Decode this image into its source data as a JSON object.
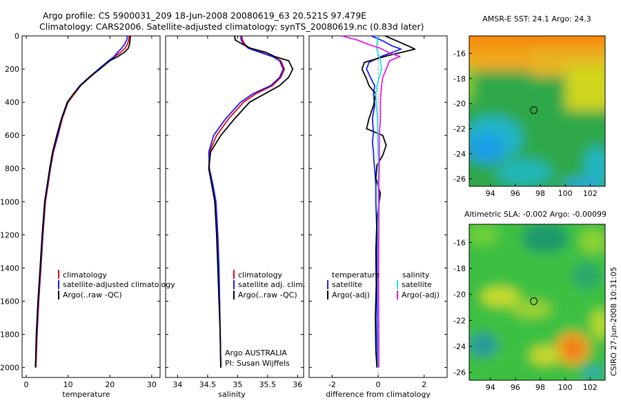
{
  "header": {
    "line1": "Argo profile: CS 5900031_209 18-Jun-2008 20080619_63 20.521S 97.479E",
    "line2": "Climatology: CARS2006. Satellite-adjusted climatology: synTS_20080619.nc (0.83d later)"
  },
  "side_label": "CSIRO 27-Jun-2008 10:31:05",
  "colors": {
    "climatology": "#e8000b",
    "satellite": "#1a1aff",
    "argo": "#000000",
    "satellite_sal": "#22e0e6",
    "argo_sal": "#e61ae6"
  },
  "chart_data": [
    {
      "type": "line",
      "xlabel": "temperature",
      "xlim": [
        -1,
        32
      ],
      "ylim": [
        2060,
        0
      ],
      "xticks": [
        0,
        10,
        20,
        30
      ],
      "yticks": [
        0,
        200,
        400,
        600,
        800,
        1000,
        1200,
        1400,
        1600,
        1800,
        2000
      ],
      "legend": [
        "climatology",
        "satellite-adjusted climatology",
        "Argo(..raw -QC)"
      ],
      "series": [
        {
          "name": "climatology",
          "color": "#e8000b",
          "x": [
            24.6,
            24.5,
            24.2,
            23.6,
            22.5,
            21.2,
            19.8,
            17.5,
            15.2,
            13.0,
            11.5,
            10.0,
            8.6,
            7.6,
            6.5,
            5.8,
            5.2,
            4.6,
            4.0,
            3.5,
            3.0,
            2.6,
            2.3
          ],
          "y": [
            0,
            25,
            50,
            75,
            100,
            125,
            150,
            200,
            250,
            300,
            350,
            400,
            500,
            600,
            700,
            800,
            900,
            1000,
            1200,
            1400,
            1600,
            1800,
            2000
          ]
        },
        {
          "name": "satellite-adjusted climatology",
          "color": "#1a1aff",
          "x": [
            24.2,
            24.0,
            23.5,
            22.8,
            21.8,
            21.0,
            19.7,
            17.3,
            15.0,
            12.8,
            11.3,
            9.9,
            8.5,
            7.5,
            6.4,
            5.7,
            5.1,
            4.5,
            3.9,
            3.4,
            2.9,
            2.5,
            2.2
          ],
          "y": [
            0,
            25,
            50,
            75,
            100,
            125,
            150,
            200,
            250,
            300,
            350,
            400,
            500,
            600,
            700,
            800,
            900,
            1000,
            1200,
            1400,
            1600,
            1800,
            2000
          ]
        },
        {
          "name": "Argo(..raw -QC)",
          "color": "#000000",
          "x": [
            24.9,
            24.8,
            24.7,
            24.4,
            23.4,
            21.9,
            20.0,
            17.6,
            15.1,
            13.0,
            11.3,
            9.8,
            8.4,
            7.3,
            6.3,
            5.6,
            5.0,
            4.4,
            3.8,
            3.3,
            2.8,
            2.4,
            2.2
          ],
          "y": [
            0,
            25,
            50,
            75,
            100,
            125,
            150,
            200,
            250,
            300,
            350,
            400,
            500,
            600,
            700,
            800,
            900,
            1000,
            1200,
            1400,
            1600,
            1800,
            2000
          ]
        }
      ]
    },
    {
      "type": "line",
      "xlabel": "salinity",
      "xlim": [
        33.8,
        36.1
      ],
      "ylim": [
        2060,
        0
      ],
      "xticks": [
        34,
        34.5,
        35,
        35.5,
        36
      ],
      "legend": [
        "climatology",
        "satellite adj. clim.",
        "Argo(..raw -QC)"
      ],
      "annotation": [
        "Argo AUSTRALIA",
        "PI: Susan Wijffels"
      ],
      "series": [
        {
          "name": "climatology",
          "color": "#e8000b",
          "x": [
            35.07,
            35.08,
            35.12,
            35.2,
            35.4,
            35.6,
            35.72,
            35.78,
            35.72,
            35.58,
            35.3,
            35.1,
            34.85,
            34.65,
            34.53,
            34.52,
            34.58,
            34.63,
            34.66,
            34.68,
            34.7,
            34.71,
            34.72
          ],
          "y": [
            0,
            25,
            50,
            75,
            100,
            125,
            150,
            200,
            250,
            300,
            350,
            400,
            500,
            600,
            700,
            800,
            900,
            1000,
            1200,
            1400,
            1600,
            1800,
            2000
          ]
        },
        {
          "name": "satellite adj. clim.",
          "color": "#1a1aff",
          "x": [
            35.05,
            35.06,
            35.1,
            35.18,
            35.38,
            35.58,
            35.7,
            35.76,
            35.7,
            35.55,
            35.25,
            35.05,
            34.8,
            34.6,
            34.52,
            34.53,
            34.59,
            34.64,
            34.67,
            34.69,
            34.7,
            34.71,
            34.72
          ],
          "y": [
            0,
            25,
            50,
            75,
            100,
            125,
            150,
            200,
            250,
            300,
            350,
            400,
            500,
            600,
            700,
            800,
            900,
            1000,
            1200,
            1400,
            1600,
            1800,
            2000
          ]
        },
        {
          "name": "Argo(..raw -QC)",
          "color": "#000000",
          "x": [
            34.95,
            34.96,
            35.08,
            35.22,
            35.48,
            35.62,
            35.85,
            35.92,
            35.85,
            35.7,
            35.45,
            35.2,
            34.95,
            34.72,
            34.55,
            34.52,
            34.57,
            34.62,
            34.65,
            34.67,
            34.69,
            34.71,
            34.72
          ],
          "y": [
            0,
            25,
            50,
            75,
            100,
            125,
            150,
            200,
            250,
            300,
            350,
            400,
            500,
            600,
            700,
            800,
            900,
            1000,
            1200,
            1400,
            1600,
            1800,
            2000
          ]
        }
      ]
    },
    {
      "type": "line",
      "xlabel": "difference from climatology",
      "xlim": [
        -3,
        3
      ],
      "ylim": [
        2060,
        0
      ],
      "xticks": [
        -2,
        0,
        2
      ],
      "legend_left_title": "temperature",
      "legend_right_title": "salinity",
      "legend": [
        "satellite",
        "Argo(-adj)",
        "satellite",
        "Argo(-adj)"
      ],
      "series": [
        {
          "name": "temperature satellite",
          "color": "#1a1aff",
          "x": [
            -0.3,
            0.2,
            0.6,
            1.0,
            0.2,
            -0.4,
            -0.5,
            -0.3,
            -0.15,
            -0.2,
            -0.15,
            -0.25,
            -0.2,
            -0.25,
            -0.2,
            -0.18,
            -0.15,
            -0.1,
            -0.1,
            -0.05,
            -0.05,
            -0.05,
            -0.05,
            -0.03,
            -0.03
          ],
          "y": [
            0,
            30,
            60,
            80,
            120,
            160,
            200,
            260,
            300,
            350,
            420,
            500,
            580,
            640,
            700,
            760,
            800,
            900,
            1000,
            1200,
            1400,
            1600,
            1800,
            1950,
            2000
          ]
        },
        {
          "name": "temperature Argo(-adj)",
          "color": "#000000",
          "x": [
            0.3,
            0.8,
            1.3,
            1.6,
            0.4,
            -0.6,
            -0.7,
            -0.5,
            -0.4,
            -0.1,
            -0.2,
            -0.4,
            -0.5,
            0.2,
            0.35,
            0.2,
            -0.05,
            -0.1,
            0.1,
            -0.05,
            -0.1,
            -0.08,
            -0.12,
            -0.1,
            -0.05
          ],
          "y": [
            0,
            30,
            60,
            80,
            120,
            160,
            200,
            260,
            300,
            350,
            420,
            500,
            560,
            600,
            660,
            720,
            780,
            860,
            950,
            1100,
            1300,
            1500,
            1700,
            1900,
            2000
          ]
        },
        {
          "name": "salinity satellite",
          "color": "#22e0e6",
          "x": [
            -0.02,
            -0.03,
            -0.05,
            -0.06,
            -0.02,
            0.05,
            0.1,
            0.15,
            0.05,
            -0.05,
            -0.1,
            -0.08,
            -0.03,
            -0.02,
            0.0,
            0.02,
            0.0,
            0.01,
            0.0,
            0.01,
            0.0,
            0.0,
            0.0
          ],
          "y": [
            0,
            25,
            50,
            75,
            100,
            125,
            150,
            200,
            250,
            300,
            350,
            400,
            500,
            600,
            700,
            800,
            900,
            1000,
            1200,
            1400,
            1600,
            1800,
            2000
          ]
        },
        {
          "name": "salinity Argo(-adj)",
          "color": "#e61ae6",
          "x": [
            -1.6,
            -0.9,
            -0.45,
            0.1,
            0.45,
            0.95,
            0.5,
            0.35,
            0.2,
            0.15,
            0.12,
            0.1,
            0.1,
            0.05,
            0.05,
            0.05,
            0.03,
            0.04,
            0.03,
            0.02,
            0.02,
            0.03,
            0.03
          ],
          "y": [
            0,
            25,
            50,
            75,
            100,
            125,
            150,
            200,
            250,
            300,
            350,
            400,
            500,
            600,
            700,
            800,
            900,
            1000,
            1200,
            1400,
            1600,
            1800,
            2000
          ]
        }
      ]
    },
    {
      "type": "heatmap",
      "title": "AMSR-E SST: 24.1 Argo: 24.3",
      "xticks": [
        94,
        96,
        98,
        100,
        102
      ],
      "yticks": [
        -16,
        -18,
        -20,
        -22,
        -24,
        -26
      ],
      "xlim": [
        92.3,
        103.2
      ],
      "ylim": [
        -26.6,
        -14.6
      ],
      "marker": {
        "lon": 97.479,
        "lat": -20.521
      }
    },
    {
      "type": "heatmap",
      "title": "Altimetric SLA: -0.002 Argo: -0.00099",
      "xticks": [
        94,
        96,
        98,
        100,
        102
      ],
      "yticks": [
        -16,
        -18,
        -20,
        -22,
        -24,
        -26
      ],
      "xlim": [
        92.3,
        103.2
      ],
      "ylim": [
        -26.6,
        -14.6
      ],
      "marker": {
        "lon": 97.479,
        "lat": -20.521
      }
    }
  ]
}
